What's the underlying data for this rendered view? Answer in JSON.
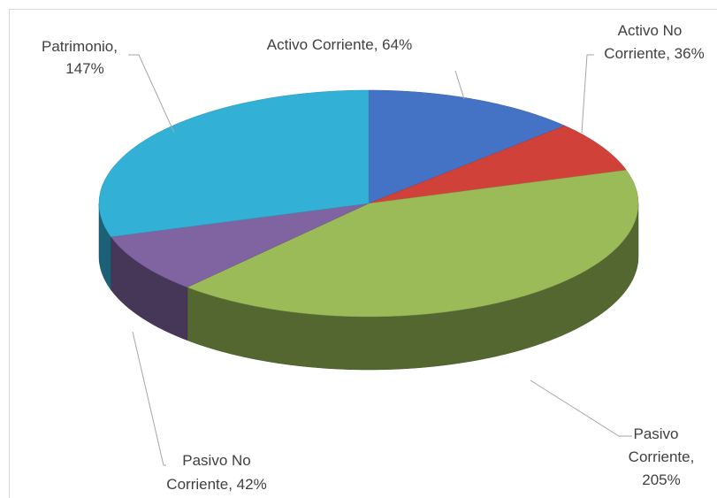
{
  "chart_data": {
    "type": "pie",
    "three_d": true,
    "values": [
      64,
      36,
      205,
      42,
      147
    ],
    "value_labels": [
      "Activo Corriente, 64%",
      "Activo No Corriente, 36%",
      "Pasivo Corriente, 205%",
      "Pasivo No Corriente, 42%",
      "Patrimonio, 147%"
    ],
    "colors": [
      "#4472c4",
      "#d0413a",
      "#9bbb59",
      "#8064a2",
      "#33b0d6"
    ]
  }
}
